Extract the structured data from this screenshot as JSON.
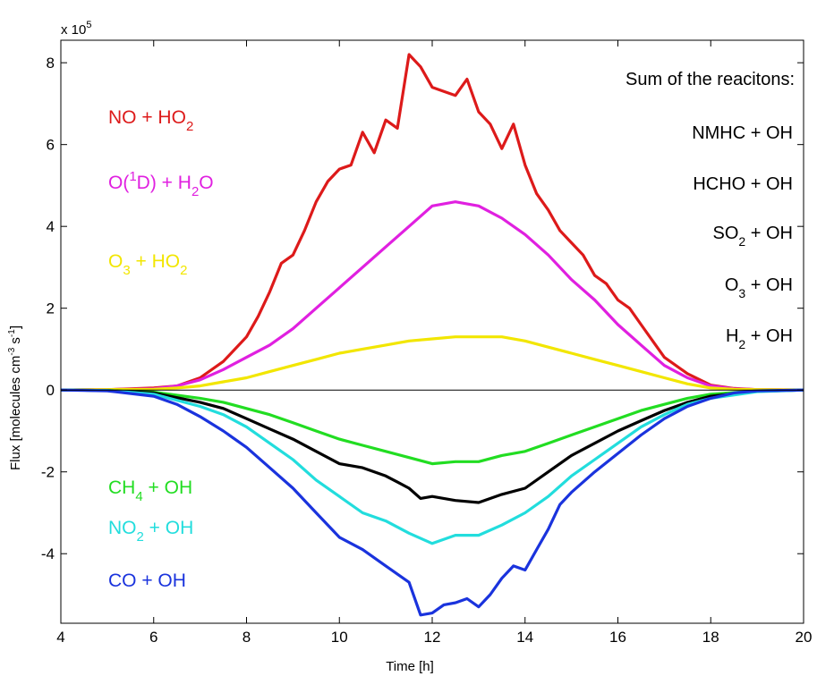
{
  "chart_data": {
    "type": "line",
    "xlabel": "Time [h]",
    "ylabel": "Flux [molecules cm⁻³ s⁻¹]",
    "ylabel_parts": {
      "base": "Flux [molecules cm",
      "exp1": "-3",
      "mid": " s",
      "exp2": "-1",
      "end": "]"
    },
    "multiplier_text": {
      "base": "x 10",
      "exp": "5"
    },
    "xlim": [
      4,
      20
    ],
    "ylim": [
      -5.7,
      8.55
    ],
    "x_ticks": [
      4,
      6,
      8,
      10,
      12,
      14,
      16,
      18,
      20
    ],
    "y_ticks": [
      -4,
      -2,
      0,
      2,
      4,
      6,
      8
    ],
    "grid": false,
    "zero_line": true,
    "sum_header": "Sum of the reacitons:",
    "sum_items": [
      {
        "text": "NMHC + OH"
      },
      {
        "text": "HCHO + OH"
      },
      {
        "a": "SO",
        "sub": "2",
        "b": " + OH"
      },
      {
        "a": "O",
        "sub": "3",
        "b": " + OH"
      },
      {
        "a": "H",
        "sub": "2",
        "b": " + OH"
      }
    ],
    "series": [
      {
        "key": "no_ho2",
        "color": "#dd1a1a",
        "label": [
          {
            "t": "NO + HO"
          },
          {
            "sub": "2"
          }
        ],
        "x": [
          4,
          5,
          6,
          6.5,
          7,
          7.5,
          8,
          8.25,
          8.5,
          8.75,
          9,
          9.25,
          9.5,
          9.75,
          10,
          10.25,
          10.5,
          10.75,
          11,
          11.25,
          11.5,
          11.75,
          12,
          12.25,
          12.5,
          12.75,
          13,
          13.25,
          13.5,
          13.75,
          14,
          14.25,
          14.5,
          14.75,
          15,
          15.25,
          15.5,
          15.75,
          16,
          16.25,
          16.5,
          16.75,
          17,
          17.5,
          18,
          18.5,
          19,
          20
        ],
        "y": [
          0,
          0.01,
          0.05,
          0.1,
          0.3,
          0.7,
          1.3,
          1.8,
          2.4,
          3.1,
          3.3,
          3.9,
          4.6,
          5.1,
          5.4,
          5.5,
          6.3,
          5.8,
          6.6,
          6.4,
          8.2,
          7.9,
          7.4,
          7.3,
          7.2,
          7.6,
          6.8,
          6.5,
          5.9,
          6.5,
          5.5,
          4.8,
          4.4,
          3.9,
          3.6,
          3.3,
          2.8,
          2.6,
          2.2,
          2.0,
          1.6,
          1.2,
          0.8,
          0.4,
          0.12,
          0.04,
          0.01,
          0
        ]
      },
      {
        "key": "o1d_h2o",
        "color": "#e020e0",
        "label": [
          {
            "t": "O("
          },
          {
            "sup": "1"
          },
          {
            "t": "D) + H"
          },
          {
            "sub": "2"
          },
          {
            "t": "O"
          }
        ],
        "x": [
          4,
          5,
          6,
          6.5,
          7,
          7.5,
          8,
          8.5,
          9,
          9.5,
          10,
          10.5,
          11,
          11.5,
          12,
          12.5,
          13,
          13.5,
          14,
          14.5,
          15,
          15.5,
          16,
          16.5,
          17,
          17.5,
          18,
          18.5,
          19,
          20
        ],
        "y": [
          0,
          0.01,
          0.03,
          0.1,
          0.25,
          0.5,
          0.8,
          1.1,
          1.5,
          2.0,
          2.5,
          3.0,
          3.5,
          4.0,
          4.5,
          4.6,
          4.5,
          4.2,
          3.8,
          3.3,
          2.7,
          2.2,
          1.6,
          1.1,
          0.6,
          0.3,
          0.1,
          0.03,
          0.01,
          0
        ]
      },
      {
        "key": "o3_ho2",
        "color": "#f2e600",
        "label": [
          {
            "t": "O"
          },
          {
            "sub": "3"
          },
          {
            "t": " + HO"
          },
          {
            "sub": "2"
          }
        ],
        "x": [
          4,
          5,
          6,
          6.5,
          7,
          7.5,
          8,
          8.5,
          9,
          9.5,
          10,
          10.5,
          11,
          11.5,
          12,
          12.5,
          13,
          13.5,
          14,
          14.5,
          15,
          15.5,
          16,
          16.5,
          17,
          17.5,
          18,
          18.5,
          19,
          20
        ],
        "y": [
          0,
          0.01,
          0.02,
          0.05,
          0.1,
          0.2,
          0.3,
          0.45,
          0.6,
          0.75,
          0.9,
          1.0,
          1.1,
          1.2,
          1.25,
          1.3,
          1.3,
          1.3,
          1.2,
          1.05,
          0.9,
          0.75,
          0.6,
          0.45,
          0.3,
          0.15,
          0.05,
          0.02,
          0.01,
          0
        ]
      },
      {
        "key": "ch4_oh",
        "color": "#22dd22",
        "label": [
          {
            "t": "CH"
          },
          {
            "sub": "4"
          },
          {
            "t": " + OH"
          }
        ],
        "x": [
          4,
          5,
          6,
          7,
          7.5,
          8,
          8.5,
          9,
          9.5,
          10,
          10.5,
          11,
          11.5,
          12,
          12.5,
          13,
          13.5,
          14,
          14.5,
          15,
          15.5,
          16,
          16.5,
          17,
          17.5,
          18,
          19,
          20
        ],
        "y": [
          0,
          -0.01,
          -0.05,
          -0.2,
          -0.3,
          -0.45,
          -0.6,
          -0.8,
          -1.0,
          -1.2,
          -1.35,
          -1.5,
          -1.65,
          -1.8,
          -1.75,
          -1.75,
          -1.6,
          -1.5,
          -1.3,
          -1.1,
          -0.9,
          -0.7,
          -0.5,
          -0.35,
          -0.2,
          -0.1,
          -0.02,
          0
        ]
      },
      {
        "key": "sum_black",
        "color": "#000000",
        "label": [],
        "x": [
          4,
          5,
          6,
          7,
          7.5,
          8,
          8.5,
          9,
          9.5,
          10,
          10.5,
          11,
          11.25,
          11.5,
          11.75,
          12,
          12.5,
          13,
          13.5,
          14,
          14.5,
          15,
          15.5,
          16,
          16.5,
          17,
          17.5,
          18,
          19,
          20
        ],
        "y": [
          0,
          -0.01,
          -0.07,
          -0.3,
          -0.45,
          -0.7,
          -0.95,
          -1.2,
          -1.5,
          -1.8,
          -1.9,
          -2.1,
          -2.25,
          -2.4,
          -2.65,
          -2.6,
          -2.7,
          -2.75,
          -2.55,
          -2.4,
          -2.0,
          -1.6,
          -1.3,
          -1.0,
          -0.75,
          -0.5,
          -0.3,
          -0.15,
          -0.03,
          0
        ]
      },
      {
        "key": "no2_oh",
        "color": "#22dddd",
        "label": [
          {
            "t": "NO"
          },
          {
            "sub": "2"
          },
          {
            "t": " + OH"
          }
        ],
        "x": [
          4,
          5,
          6,
          7,
          7.5,
          8,
          8.5,
          9,
          9.5,
          10,
          10.5,
          11,
          11.5,
          12,
          12.5,
          13,
          13.5,
          14,
          14.5,
          15,
          15.5,
          16,
          16.5,
          17,
          17.5,
          18,
          19,
          20
        ],
        "y": [
          0,
          -0.01,
          -0.1,
          -0.4,
          -0.6,
          -0.9,
          -1.3,
          -1.7,
          -2.2,
          -2.6,
          -3.0,
          -3.2,
          -3.5,
          -3.75,
          -3.55,
          -3.55,
          -3.3,
          -3.0,
          -2.6,
          -2.1,
          -1.7,
          -1.3,
          -0.9,
          -0.6,
          -0.35,
          -0.2,
          -0.04,
          0
        ]
      },
      {
        "key": "co_oh",
        "color": "#1a33dd",
        "label": [
          {
            "t": "CO + OH"
          }
        ],
        "x": [
          4,
          5,
          6,
          6.5,
          7,
          7.5,
          8,
          8.5,
          9,
          9.5,
          10,
          10.5,
          11,
          11.25,
          11.5,
          11.75,
          12,
          12.25,
          12.5,
          12.75,
          13,
          13.25,
          13.5,
          13.75,
          14,
          14.25,
          14.5,
          14.75,
          15,
          15.5,
          16,
          16.5,
          17,
          17.5,
          18,
          18.5,
          19,
          20
        ],
        "y": [
          0,
          -0.02,
          -0.15,
          -0.35,
          -0.65,
          -1.0,
          -1.4,
          -1.9,
          -2.4,
          -3.0,
          -3.6,
          -3.9,
          -4.3,
          -4.5,
          -4.7,
          -5.5,
          -5.45,
          -5.25,
          -5.2,
          -5.1,
          -5.3,
          -5.0,
          -4.6,
          -4.3,
          -4.4,
          -3.9,
          -3.4,
          -2.8,
          -2.5,
          -2.0,
          -1.55,
          -1.1,
          -0.7,
          -0.4,
          -0.2,
          -0.07,
          -0.02,
          0
        ]
      }
    ]
  }
}
